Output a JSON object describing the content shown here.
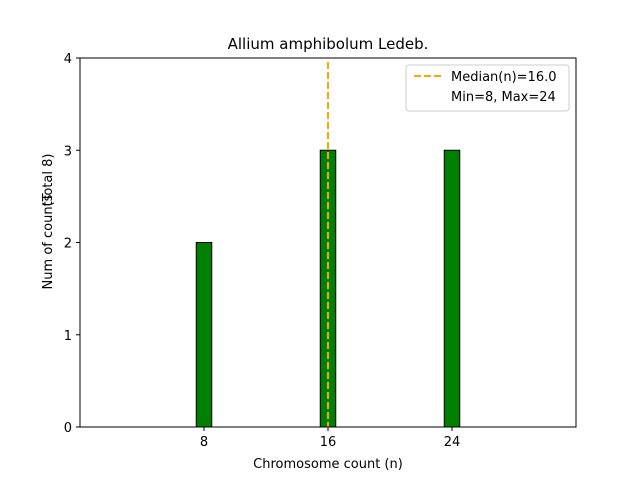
{
  "chart_data": {
    "type": "bar",
    "title": "Allium amphibolum Ledeb.",
    "xlabel": "Chromosome count (n)",
    "ylabel": "Num of counts",
    "ylabel_secondary": "(Total 8)",
    "x": [
      8,
      16,
      24
    ],
    "values": [
      2,
      3,
      3
    ],
    "xlim": [
      0,
      32
    ],
    "ylim": [
      0,
      4
    ],
    "xticks": [
      8,
      16,
      24
    ],
    "yticks": [
      0,
      1,
      2,
      3,
      4
    ],
    "bar_width": 1,
    "bar_color": "#008000",
    "bar_edge_color": "#000000",
    "grid": false,
    "median": {
      "value": 16,
      "label": "Median(n)=16.0",
      "color": "#FFA500",
      "style": "dashed"
    },
    "legend": {
      "placement": "top-right",
      "entries": [
        "Median(n)=16.0",
        "Min=8, Max=24"
      ]
    }
  }
}
